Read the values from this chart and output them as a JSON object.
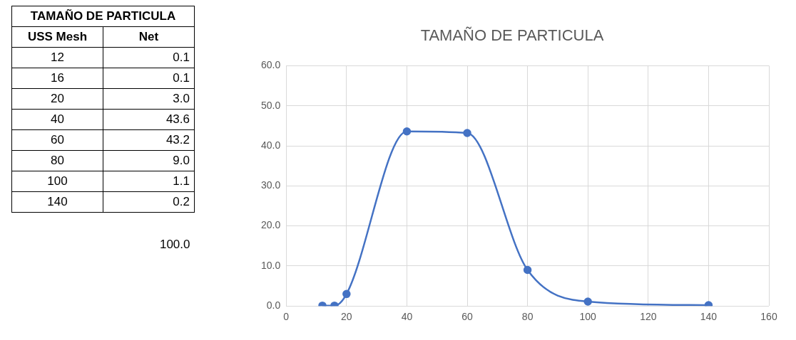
{
  "chart_data": {
    "type": "line",
    "title": "TAMAÑO DE PARTICULA",
    "x": [
      12,
      16,
      20,
      40,
      60,
      80,
      100,
      140
    ],
    "series": [
      {
        "color": "#4472c4",
        "values": [
          0.1,
          0.1,
          3.0,
          43.6,
          43.2,
          9.0,
          1.1,
          0.2
        ]
      }
    ],
    "value_labels": [
      "0.1",
      "0.1",
      "3.0",
      "43.6",
      "43.2",
      "9.0",
      "1.1",
      "0.2"
    ],
    "annotations": [
      "TAMAÑO DE PARTICULA",
      "USS Mesh",
      "Net",
      "100.0",
      "12",
      "16",
      "20",
      "40",
      "60",
      "80",
      "100",
      "140"
    ],
    "xlim": [
      0,
      160
    ],
    "xticks": [
      0,
      20,
      40,
      60,
      80,
      100,
      120,
      140,
      160
    ],
    "ylim": [
      0,
      60
    ],
    "yticks": [
      {
        "value": 0,
        "label": "0.0"
      },
      {
        "value": 10,
        "label": "10.0"
      },
      {
        "value": 20,
        "label": "20.0"
      },
      {
        "value": 30,
        "label": "30.0"
      },
      {
        "value": 40,
        "label": "40.0"
      },
      {
        "value": 50,
        "label": "50.0"
      },
      {
        "value": 60,
        "label": "60.0"
      }
    ],
    "grid": true,
    "marker": "circle",
    "line_style": "solid",
    "legend": false
  }
}
